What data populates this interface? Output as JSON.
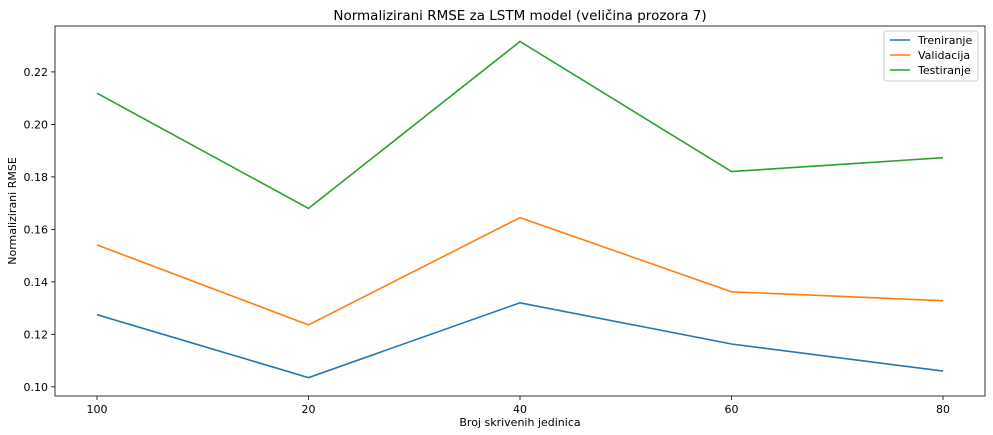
{
  "chart_data": {
    "type": "line",
    "title": "Normalizirani RMSE za LSTM model (veličina prozora 7)",
    "xlabel": "Broj skrivenih jedinica",
    "ylabel": "Normalizirani RMSE",
    "categories": [
      "100",
      "20",
      "40",
      "60",
      "80"
    ],
    "yticks": [
      "0.10",
      "0.12",
      "0.14",
      "0.16",
      "0.18",
      "0.20",
      "0.22"
    ],
    "ylim": [
      0.0965,
      0.2375
    ],
    "grid": false,
    "legend_position": "top-right",
    "series": [
      {
        "name": "Treniranje",
        "color": "#1f77b4",
        "values": [
          0.1275,
          0.1035,
          0.132,
          0.1163,
          0.106
        ]
      },
      {
        "name": "Validacija",
        "color": "#ff7f0e",
        "values": [
          0.1541,
          0.1236,
          0.1645,
          0.1362,
          0.1328
        ]
      },
      {
        "name": "Testiranje",
        "color": "#2ca02c",
        "values": [
          0.2119,
          0.168,
          0.2316,
          0.182,
          0.1873
        ]
      }
    ]
  }
}
